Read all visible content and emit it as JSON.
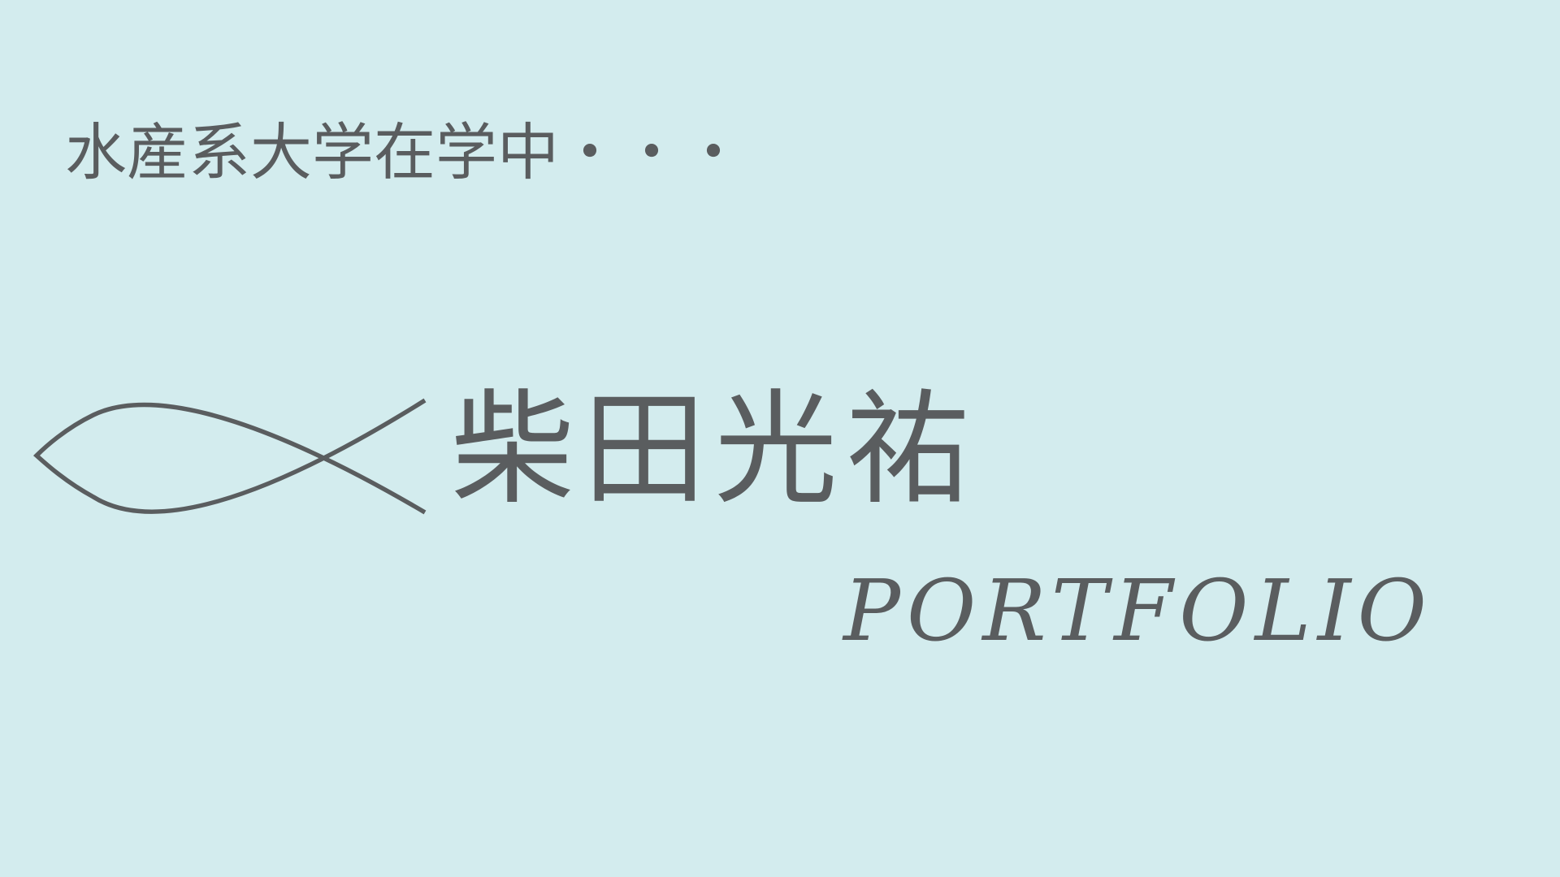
{
  "colors": {
    "background": "#d3ecee",
    "text": "#5a5d5f"
  },
  "header": {
    "tagline": "水産系大学在学中・・・"
  },
  "logo": {
    "icon": "fish-icon"
  },
  "main": {
    "name": "柴田光祐",
    "subtitle": "PORTFOLIO"
  }
}
